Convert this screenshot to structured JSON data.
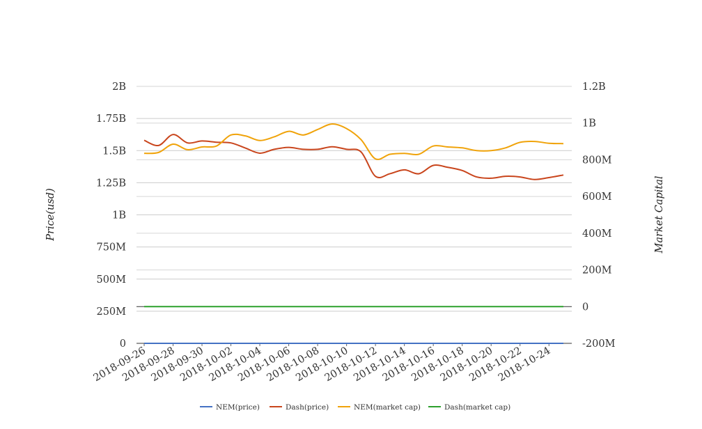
{
  "chart_data": {
    "type": "line",
    "x": [
      "2018-09-26",
      "2018-09-27",
      "2018-09-28",
      "2018-09-29",
      "2018-09-30",
      "2018-10-01",
      "2018-10-02",
      "2018-10-03",
      "2018-10-04",
      "2018-10-05",
      "2018-10-06",
      "2018-10-07",
      "2018-10-08",
      "2018-10-09",
      "2018-10-10",
      "2018-10-11",
      "2018-10-12",
      "2018-10-13",
      "2018-10-14",
      "2018-10-15",
      "2018-10-16",
      "2018-10-17",
      "2018-10-18",
      "2018-10-19",
      "2018-10-20",
      "2018-10-21",
      "2018-10-22",
      "2018-10-23",
      "2018-10-24",
      "2018-10-25"
    ],
    "x_tick_labels": [
      "2018-09-26",
      "2018-09-28",
      "2018-09-30",
      "2018-10-02",
      "2018-10-04",
      "2018-10-06",
      "2018-10-08",
      "2018-10-10",
      "2018-10-12",
      "2018-10-14",
      "2018-10-16",
      "2018-10-18",
      "2018-10-20",
      "2018-10-22",
      "2018-10-24"
    ],
    "y_left": {
      "label": "Price(usd)",
      "range": [
        0,
        2000000000
      ],
      "tick_labels": [
        "0",
        "250M",
        "500M",
        "750M",
        "1B",
        "1.25B",
        "1.5B",
        "1.75B",
        "2B"
      ]
    },
    "y_right": {
      "label": "Market Capital",
      "range": [
        -200000000,
        1200000000
      ],
      "tick_labels": [
        "-200M",
        "0",
        "200M",
        "400M",
        "600M",
        "800M",
        "1B",
        "1.2B"
      ]
    },
    "series": [
      {
        "name": "NEM(price)",
        "axis": "left",
        "color": "#4472c4",
        "values": [
          0.07,
          0.07,
          0.07,
          0.07,
          0.07,
          0.07,
          0.07,
          0.07,
          0.07,
          0.07,
          0.07,
          0.07,
          0.07,
          0.07,
          0.07,
          0.07,
          0.07,
          0.07,
          0.07,
          0.07,
          0.07,
          0.07,
          0.07,
          0.07,
          0.07,
          0.07,
          0.07,
          0.07,
          0.07,
          0.07
        ]
      },
      {
        "name": "Dash(price)",
        "axis": "left",
        "color": "#c9451c",
        "values": [
          1580000000,
          1540000000,
          1625000000,
          1560000000,
          1575000000,
          1565000000,
          1560000000,
          1520000000,
          1480000000,
          1510000000,
          1525000000,
          1510000000,
          1510000000,
          1530000000,
          1510000000,
          1490000000,
          1300000000,
          1320000000,
          1350000000,
          1320000000,
          1385000000,
          1370000000,
          1345000000,
          1295000000,
          1285000000,
          1300000000,
          1295000000,
          1275000000,
          1290000000,
          1310000000
        ]
      },
      {
        "name": "NEM(market cap)",
        "axis": "right",
        "color": "#f0a30a",
        "values": [
          835000000,
          840000000,
          885000000,
          855000000,
          870000000,
          875000000,
          935000000,
          930000000,
          905000000,
          925000000,
          955000000,
          935000000,
          965000000,
          995000000,
          970000000,
          910000000,
          805000000,
          830000000,
          835000000,
          830000000,
          875000000,
          870000000,
          865000000,
          850000000,
          850000000,
          865000000,
          895000000,
          900000000,
          890000000,
          888000000
        ]
      },
      {
        "name": "Dash(market cap)",
        "axis": "right",
        "color": "#2ca02c",
        "values": [
          0,
          0,
          0,
          0,
          0,
          0,
          0,
          0,
          0,
          0,
          0,
          0,
          0,
          0,
          0,
          0,
          0,
          0,
          0,
          0,
          0,
          0,
          0,
          0,
          0,
          0,
          0,
          0,
          0,
          0
        ]
      }
    ],
    "legend_position": "bottom",
    "grid": true
  }
}
